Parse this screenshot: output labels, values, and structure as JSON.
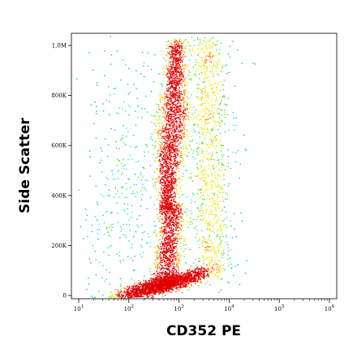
{
  "chart_data": {
    "type": "scatter",
    "plot_style": "flow-cytometry-density-dot-plot",
    "title": "",
    "xlabel": "CD352 PE",
    "ylabel": "Side Scatter",
    "x_scale": "log",
    "xlim": [
      10,
      1000000
    ],
    "ylim": [
      0,
      1050000
    ],
    "x_ticks": [
      {
        "value": 10,
        "base": "10",
        "exp": "1"
      },
      {
        "value": 100,
        "base": "10",
        "exp": "2"
      },
      {
        "value": 1000,
        "base": "10",
        "exp": "3"
      },
      {
        "value": 10000,
        "base": "10",
        "exp": "4"
      },
      {
        "value": 100000,
        "base": "10",
        "exp": "5"
      },
      {
        "value": 1000000,
        "base": "10",
        "exp": "6"
      }
    ],
    "y_ticks": [
      {
        "value": 0,
        "label": "0"
      },
      {
        "value": 200000,
        "label": "200K"
      },
      {
        "value": 400000,
        "label": "400K"
      },
      {
        "value": 600000,
        "label": "600K"
      },
      {
        "value": 800000,
        "label": "800K"
      },
      {
        "value": 1000000,
        "label": "1,0M"
      }
    ],
    "grid": false,
    "legend": "none",
    "density_colormap": [
      "#1a1aff",
      "#00a0ff",
      "#00e0c0",
      "#40e000",
      "#e8e800",
      "#ff8000",
      "#e00000"
    ],
    "populations": [
      {
        "x_center": 850,
        "y_center": 50000,
        "note": "low-SSC band",
        "density": "high"
      },
      {
        "x_center": 700,
        "y_center": 620000,
        "note": "high-SSC vertical population",
        "density": "high"
      },
      {
        "x_center": 750,
        "y_center": 300000,
        "note": "intermediate-SSC stream",
        "density": "medium"
      },
      {
        "x_center": 3500,
        "y_center": 450000,
        "note": "CD352+ sparse population",
        "density": "low"
      }
    ]
  }
}
